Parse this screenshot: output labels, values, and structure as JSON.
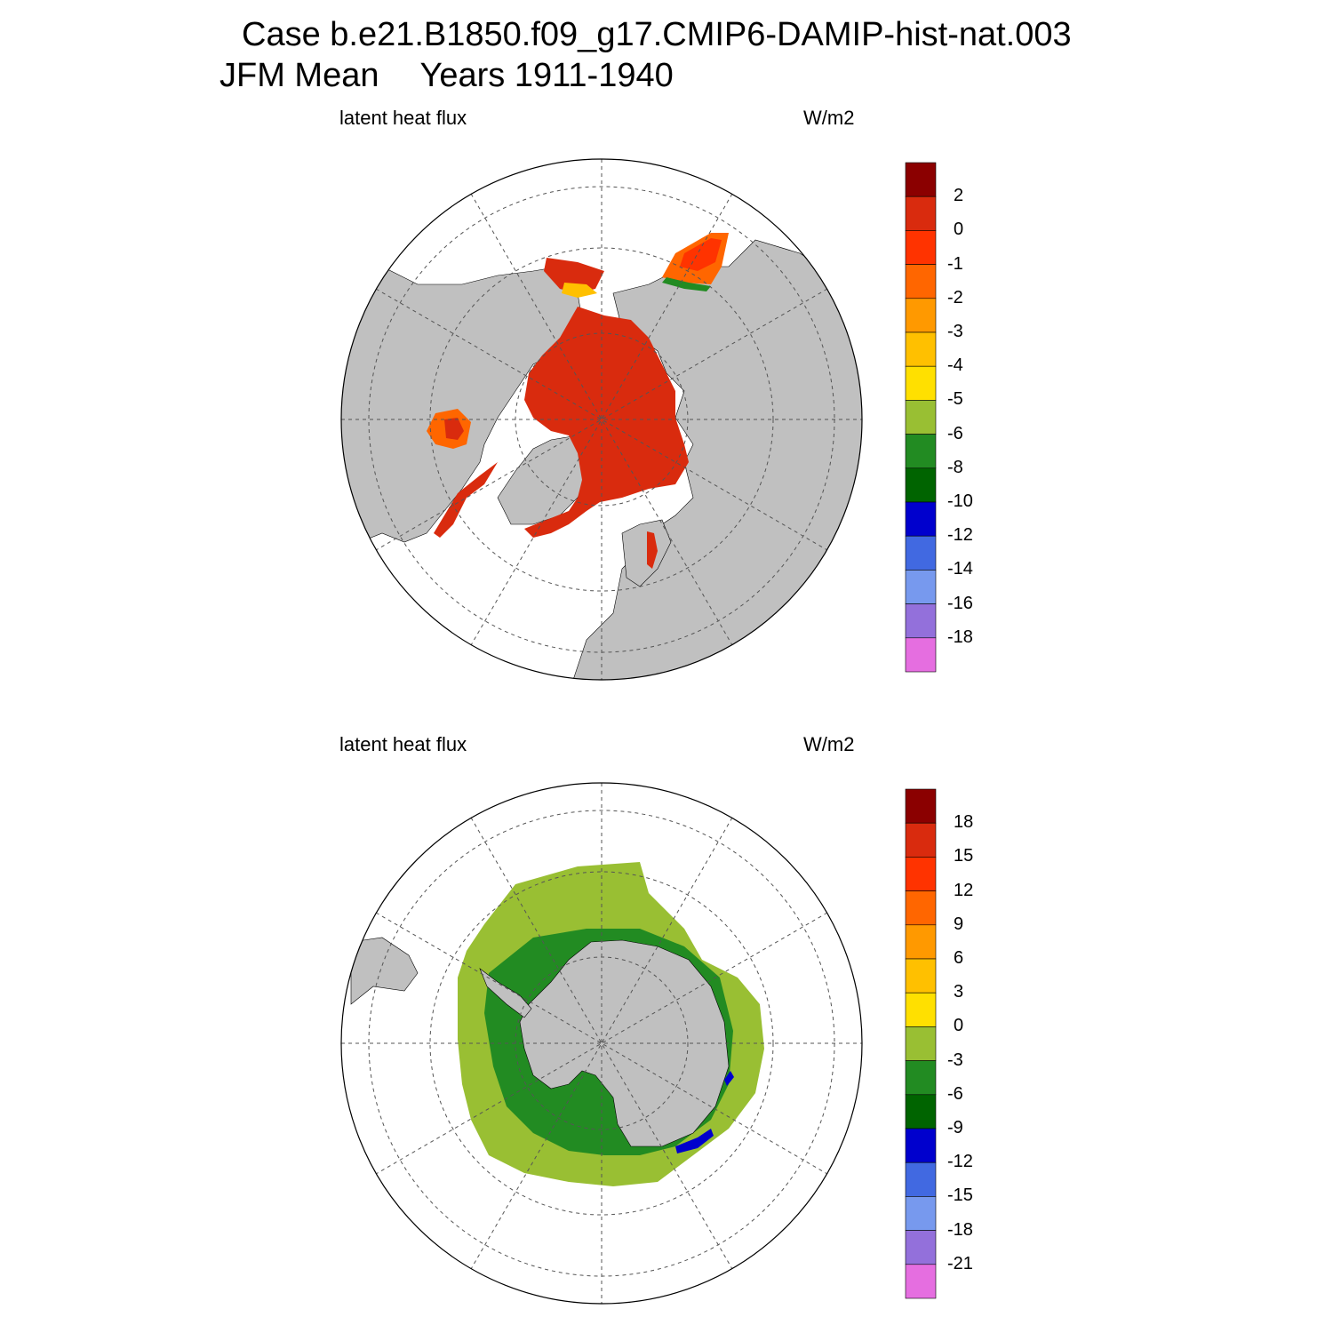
{
  "title": {
    "case_line": "Case b.e21.B1850.f09_g17.CMIP6-DAMIP-hist-nat.003",
    "season": "JFM Mean",
    "years": "Years 1911-1940"
  },
  "panels": [
    {
      "id": "north",
      "hemisphere": "north",
      "variable_label": "latent heat flux",
      "units_label": "W/m2",
      "colorbar_labels": [
        "2",
        "0",
        "-1",
        "-2",
        "-3",
        "-4",
        "-5",
        "-6",
        "-8",
        "-10",
        "-12",
        "-14",
        "-16",
        "-18"
      ],
      "colorbar_colors": [
        "#8b0000",
        "#d92b0e",
        "#ff3300",
        "#ff6600",
        "#ff9900",
        "#ffc000",
        "#ffe000",
        "#99bf33",
        "#228b22",
        "#006400",
        "#0000cd",
        "#4169e1",
        "#7799ee",
        "#9370db",
        "#e56ee0"
      ]
    },
    {
      "id": "south",
      "hemisphere": "south",
      "variable_label": "latent heat flux",
      "units_label": "W/m2",
      "colorbar_labels": [
        "18",
        "15",
        "12",
        "9",
        "6",
        "3",
        "0",
        "-3",
        "-6",
        "-9",
        "-12",
        "-15",
        "-18",
        "-21"
      ],
      "colorbar_colors": [
        "#8b0000",
        "#d92b0e",
        "#ff3300",
        "#ff6600",
        "#ff9900",
        "#ffc000",
        "#ffe000",
        "#99bf33",
        "#228b22",
        "#006400",
        "#0000cd",
        "#4169e1",
        "#7799ee",
        "#9370db",
        "#e56ee0"
      ]
    }
  ],
  "colors": {
    "land": "#c0c0c0",
    "ocean_background": "#ffffff",
    "grid": "#555555"
  }
}
